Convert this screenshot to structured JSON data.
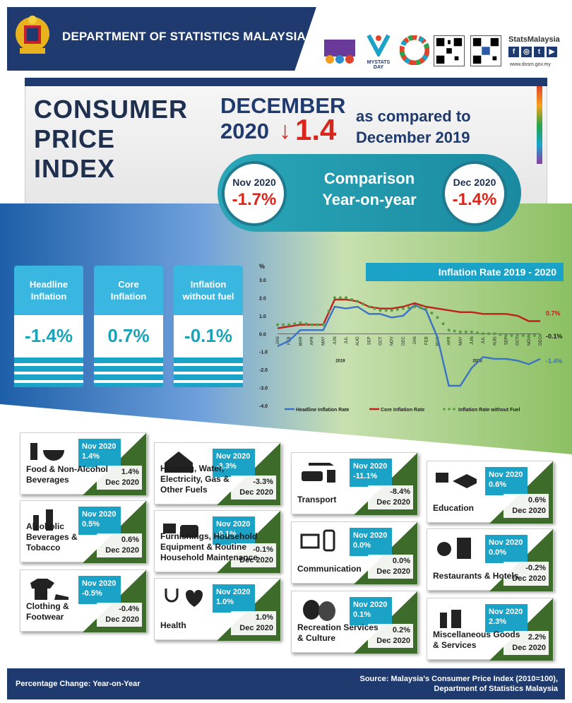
{
  "header": {
    "title": "DEPARTMENT OF STATISTICS MALAYSIA",
    "brand": "StatsMalaysia",
    "url": "www.dosm.gov.my",
    "mystats_day": "MYSTATS DAY"
  },
  "banner": {
    "title_line1": "CONSUMER",
    "title_line2": "PRICE",
    "title_line3": "INDEX",
    "month": "DECEMBER",
    "year": "2020",
    "value": "1.4",
    "compare_line1": "as compared to",
    "compare_line2": "December 2019"
  },
  "comparison": {
    "left_label": "Nov 2020",
    "left_value": "-1.7%",
    "center_line1": "Comparison",
    "center_line2": "Year-on-year",
    "right_label": "Dec 2020",
    "right_value": "-1.4%"
  },
  "cards": [
    {
      "label_line1": "Headline",
      "label_line2": "Inflation",
      "value": "-1.4%"
    },
    {
      "label_line1": "Core",
      "label_line2": "Inflation",
      "value": "0.7%"
    },
    {
      "label_line1": "Inflation",
      "label_line2": "without fuel",
      "value": "-0.1%"
    }
  ],
  "chart_data": {
    "type": "line",
    "title": "Inflation Rate 2019 - 2020",
    "ylabel": "%",
    "ylim": [
      -4.0,
      3.0
    ],
    "yticks": [
      "3.0",
      "2.0",
      "1.0",
      "0.0",
      "-1.0",
      "-2.0",
      "-3.0",
      "-4.0"
    ],
    "categories": [
      "JAN",
      "FEB",
      "MAR",
      "APR",
      "MAY",
      "JUN",
      "JUL",
      "AUG",
      "SEP",
      "OCT",
      "NOV",
      "DEC",
      "JAN",
      "FEB",
      "MAR",
      "APR",
      "MAY",
      "JUN",
      "JUL",
      "AUG",
      "SEP",
      "OCT",
      "NOV",
      "DEC"
    ],
    "year_labels": [
      "2019",
      "2020"
    ],
    "series": [
      {
        "name": "Headline Inflation Rate",
        "color": "#3b72c4",
        "values": [
          -0.7,
          -0.4,
          0.2,
          0.2,
          0.2,
          1.5,
          1.4,
          1.5,
          1.1,
          1.1,
          0.9,
          1.0,
          1.6,
          1.3,
          -0.2,
          -2.9,
          -2.9,
          -1.9,
          -1.3,
          -1.4,
          -1.4,
          -1.5,
          -1.7,
          -1.4
        ],
        "end_label": "-1.4%"
      },
      {
        "name": "Core Inflation Rate",
        "color": "#c0201a",
        "values": [
          0.3,
          0.4,
          0.5,
          0.5,
          0.5,
          1.9,
          1.9,
          1.8,
          1.5,
          1.4,
          1.4,
          1.5,
          1.7,
          1.5,
          1.4,
          1.3,
          1.2,
          1.2,
          1.1,
          1.1,
          1.1,
          1.0,
          0.7,
          0.7
        ],
        "end_label": "0.7%"
      },
      {
        "name": "Inflation Rate without Fuel",
        "color": "#5a9a45",
        "values": [
          0.5,
          0.5,
          0.6,
          0.5,
          0.5,
          2.0,
          2.0,
          1.8,
          1.5,
          1.3,
          1.3,
          1.4,
          1.5,
          1.4,
          0.9,
          0.2,
          0.1,
          0.1,
          0.0,
          0.0,
          -0.1,
          -0.1,
          -0.1,
          -0.1
        ],
        "end_label": "-0.1%"
      }
    ]
  },
  "tiles": [
    {
      "nov_label": "Nov 2020",
      "nov_value": "1.4%",
      "dec_value": "1.4%",
      "dec_label": "Dec 2020",
      "name_line1": "Food & Non-Alcohol",
      "name_line2": "Beverages",
      "name_line3": "",
      "name_line4": ""
    },
    {
      "nov_label": "Nov 2020",
      "nov_value": "0.5%",
      "dec_value": "0.6%",
      "dec_label": "Dec 2020",
      "name_line1": "Alcoholic",
      "name_line2": "Beverages &",
      "name_line3": "Tobacco",
      "name_line4": ""
    },
    {
      "nov_label": "Nov 2020",
      "nov_value": "-0.5%",
      "dec_value": "-0.4%",
      "dec_label": "Dec 2020",
      "name_line1": "Clothing &",
      "name_line2": "Footwear",
      "name_line3": "",
      "name_line4": ""
    },
    {
      "nov_label": "Nov 2020",
      "nov_value": "-3.3%",
      "dec_value": "-3.3%",
      "dec_label": "Dec 2020",
      "name_line1": "Housing, Water,",
      "name_line2": "Electricity, Gas &",
      "name_line3": "Other Fuels",
      "name_line4": ""
    },
    {
      "nov_label": "Nov 2020",
      "nov_value": "-0.1%",
      "dec_value": "-0.1%",
      "dec_label": "Dec 2020",
      "name_line1": "Furnishings, Household",
      "name_line2": "Equipment & Routine",
      "name_line3": "Household Maintenance",
      "name_line4": ""
    },
    {
      "nov_label": "Nov 2020",
      "nov_value": "1.0%",
      "dec_value": "1.0%",
      "dec_label": "Dec 2020",
      "name_line1": "Health",
      "name_line2": "",
      "name_line3": "",
      "name_line4": ""
    },
    {
      "nov_label": "Nov 2020",
      "nov_value": "-11.1%",
      "dec_value": "-8.4%",
      "dec_label": "Dec 2020",
      "name_line1": "Transport",
      "name_line2": "",
      "name_line3": "",
      "name_line4": ""
    },
    {
      "nov_label": "Nov 2020",
      "nov_value": "0.0%",
      "dec_value": "0.0%",
      "dec_label": "Dec 2020",
      "name_line1": "Communication",
      "name_line2": "",
      "name_line3": "",
      "name_line4": ""
    },
    {
      "nov_label": "Nov 2020",
      "nov_value": "0.1%",
      "dec_value": "0.2%",
      "dec_label": "Dec 2020",
      "name_line1": "Recreation Services",
      "name_line2": "& Culture",
      "name_line3": "",
      "name_line4": ""
    },
    {
      "nov_label": "Nov 2020",
      "nov_value": "0.6%",
      "dec_value": "0.6%",
      "dec_label": "Dec 2020",
      "name_line1": "Education",
      "name_line2": "",
      "name_line3": "",
      "name_line4": ""
    },
    {
      "nov_label": "Nov 2020",
      "nov_value": "0.0%",
      "dec_value": "-0.2%",
      "dec_label": "Dec 2020",
      "name_line1": "Restaurants & Hotels",
      "name_line2": "",
      "name_line3": "",
      "name_line4": ""
    },
    {
      "nov_label": "Nov 2020",
      "nov_value": "2.3%",
      "dec_value": "2.2%",
      "dec_label": "Dec 2020",
      "name_line1": "Miscellaneous Goods",
      "name_line2": "& Services",
      "name_line3": "",
      "name_line4": ""
    }
  ],
  "footer": {
    "left": "Percentage Change: Year-on-Year",
    "right_line1": "Source: Malaysia's Consumer Price Index (2010=100),",
    "right_line2": "Department of Statistics Malaysia"
  }
}
